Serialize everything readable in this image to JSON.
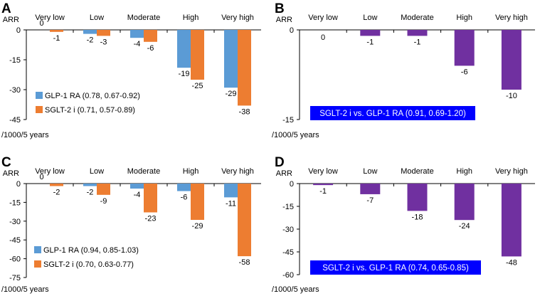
{
  "chart_data": [
    {
      "panel": "A",
      "type": "bar",
      "ylabel": "ARR",
      "xunit": "/1000/5 years",
      "categories": [
        "Very low",
        "Low",
        "Moderate",
        "High",
        "Very high"
      ],
      "yticks": [
        0,
        -15,
        -30,
        -45
      ],
      "ylim": [
        -45,
        0
      ],
      "series": [
        {
          "name": "GLP-1 RA (0.78, 0.67-0.92)",
          "color": "#5B9BD5",
          "values": [
            0,
            -2,
            -4,
            -19,
            -29
          ]
        },
        {
          "name": "SGLT-2 i (0.71, 0.57-0.89)",
          "color": "#ED7D31",
          "values": [
            -1,
            -3,
            -6,
            -25,
            -38
          ]
        }
      ],
      "legend": "bottom-left"
    },
    {
      "panel": "B",
      "type": "bar",
      "ylabel": "ARR",
      "xunit": "/1000/5 years",
      "categories": [
        "Very low",
        "Low",
        "Moderate",
        "High",
        "Very high"
      ],
      "yticks": [
        0,
        -15
      ],
      "ylim": [
        -15,
        0
      ],
      "series": [
        {
          "name": "",
          "color": "#7030A0",
          "values": [
            0,
            -1,
            -1,
            -6,
            -10
          ]
        }
      ],
      "box_label": "SGLT-2 i vs. GLP-1 RA (0.91, 0.69-1.20)"
    },
    {
      "panel": "C",
      "type": "bar",
      "ylabel": "ARR",
      "xunit": "/1000/5 years",
      "categories": [
        "Very low",
        "Low",
        "Moderate",
        "High",
        "Very high"
      ],
      "yticks": [
        0,
        -15,
        -30,
        -45,
        -60,
        -75
      ],
      "ylim": [
        -75,
        0
      ],
      "series": [
        {
          "name": "GLP-1 RA (0.94, 0.85-1.03)",
          "color": "#5B9BD5",
          "values": [
            0,
            -2,
            -4,
            -6,
            -11
          ]
        },
        {
          "name": "SGLT-2 i (0.70, 0.63-0.77)",
          "color": "#ED7D31",
          "values": [
            -2,
            -9,
            -23,
            -29,
            -58
          ]
        }
      ],
      "legend": "bottom-left"
    },
    {
      "panel": "D",
      "type": "bar",
      "ylabel": "ARR",
      "xunit": "/1000/5 years",
      "categories": [
        "Very low",
        "Low",
        "Moderate",
        "High",
        "Very high"
      ],
      "yticks": [
        0,
        -15,
        -30,
        -45,
        -60
      ],
      "ylim": [
        -60,
        0
      ],
      "series": [
        {
          "name": "",
          "color": "#7030A0",
          "values": [
            -1,
            -7,
            -18,
            -24,
            -48
          ]
        }
      ],
      "box_label": "SGLT-2 i vs. GLP-1 RA (0.74, 0.65-0.85)"
    }
  ]
}
